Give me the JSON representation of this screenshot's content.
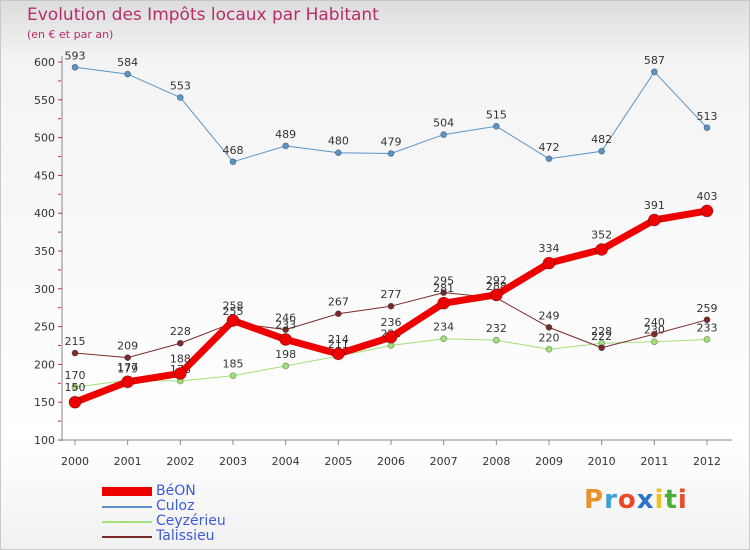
{
  "header": {
    "title": "Evolution des Impôts locaux par Habitant",
    "subtitle": "(en € et par an)"
  },
  "logo": {
    "letters": [
      "P",
      "r",
      "o",
      "x",
      "i",
      "t",
      "i"
    ],
    "colors": [
      "#e8932a",
      "#3aa0d8",
      "#e84a2a",
      "#2a73c8",
      "#f0c020",
      "#4caf3a",
      "#e84a2a"
    ]
  },
  "chart_data": {
    "type": "line",
    "title": "Evolution des Impôts locaux par Habitant",
    "subtitle": "(en € et par an)",
    "x": [
      "2000",
      "2001",
      "2002",
      "2003",
      "2004",
      "2005",
      "2006",
      "2007",
      "2008",
      "2009",
      "2010",
      "2011",
      "2012"
    ],
    "ylim": [
      100,
      600
    ],
    "yticks": [
      100,
      150,
      200,
      250,
      300,
      350,
      400,
      450,
      500,
      550,
      600
    ],
    "grid": false,
    "legend_position": "bottom-left",
    "series": [
      {
        "name": "Culoz",
        "color": "#5b95c8",
        "values": [
          593,
          584,
          553,
          468,
          489,
          480,
          479,
          504,
          515,
          472,
          482,
          587,
          513
        ]
      },
      {
        "name": "Ceyzérieu",
        "color": "#a4e07a",
        "values": [
          170,
          179,
          178,
          185,
          198,
          211,
          225,
          234,
          232,
          220,
          228,
          230,
          233
        ]
      },
      {
        "name": "Talissieu",
        "color": "#7a2b2b",
        "values": [
          215,
          209,
          228,
          255,
          246,
          267,
          277,
          295,
          288,
          249,
          222,
          240,
          259
        ]
      },
      {
        "name": "BéON",
        "color": "#ee0000",
        "values": [
          150,
          177,
          188,
          258,
          233,
          214,
          236,
          281,
          292,
          334,
          352,
          391,
          403
        ]
      }
    ]
  }
}
